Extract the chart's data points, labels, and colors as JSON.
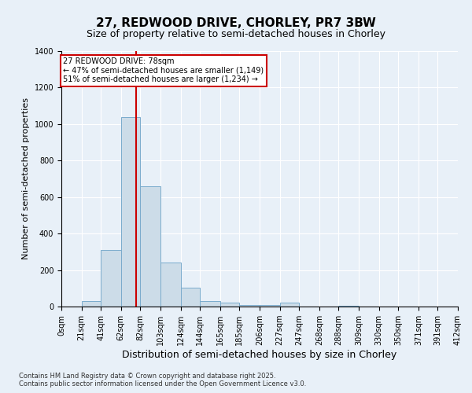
{
  "title1": "27, REDWOOD DRIVE, CHORLEY, PR7 3BW",
  "title2": "Size of property relative to semi-detached houses in Chorley",
  "xlabel": "Distribution of semi-detached houses by size in Chorley",
  "ylabel": "Number of semi-detached properties",
  "bin_labels": [
    "0sqm",
    "21sqm",
    "41sqm",
    "62sqm",
    "82sqm",
    "103sqm",
    "124sqm",
    "144sqm",
    "165sqm",
    "185sqm",
    "206sqm",
    "227sqm",
    "247sqm",
    "268sqm",
    "288sqm",
    "309sqm",
    "330sqm",
    "350sqm",
    "371sqm",
    "391sqm",
    "412sqm"
  ],
  "bin_edges": [
    0,
    21,
    41,
    62,
    82,
    103,
    124,
    144,
    165,
    185,
    206,
    227,
    247,
    268,
    288,
    309,
    330,
    350,
    371,
    391,
    412
  ],
  "counts": [
    0,
    30,
    310,
    1040,
    660,
    240,
    105,
    30,
    20,
    10,
    10,
    20,
    0,
    0,
    5,
    0,
    0,
    0,
    0,
    0
  ],
  "bar_color": "#ccdce8",
  "bar_edge_color": "#7aabcc",
  "property_size": 78,
  "red_line_color": "#cc0000",
  "annotation_line1": "27 REDWOOD DRIVE: 78sqm",
  "annotation_line2": "← 47% of semi-detached houses are smaller (1,149)",
  "annotation_line3": "51% of semi-detached houses are larger (1,234) →",
  "annotation_box_color": "#cc0000",
  "footer1": "Contains HM Land Registry data © Crown copyright and database right 2025.",
  "footer2": "Contains public sector information licensed under the Open Government Licence v3.0.",
  "ylim": [
    0,
    1400
  ],
  "xlim": [
    0,
    412
  ],
  "yticks": [
    0,
    200,
    400,
    600,
    800,
    1000,
    1200,
    1400
  ],
  "background_color": "#e8f0f8",
  "grid_color": "#ffffff",
  "title1_fontsize": 11,
  "title2_fontsize": 9,
  "xlabel_fontsize": 9,
  "ylabel_fontsize": 8,
  "tick_fontsize": 7,
  "footer_fontsize": 6
}
